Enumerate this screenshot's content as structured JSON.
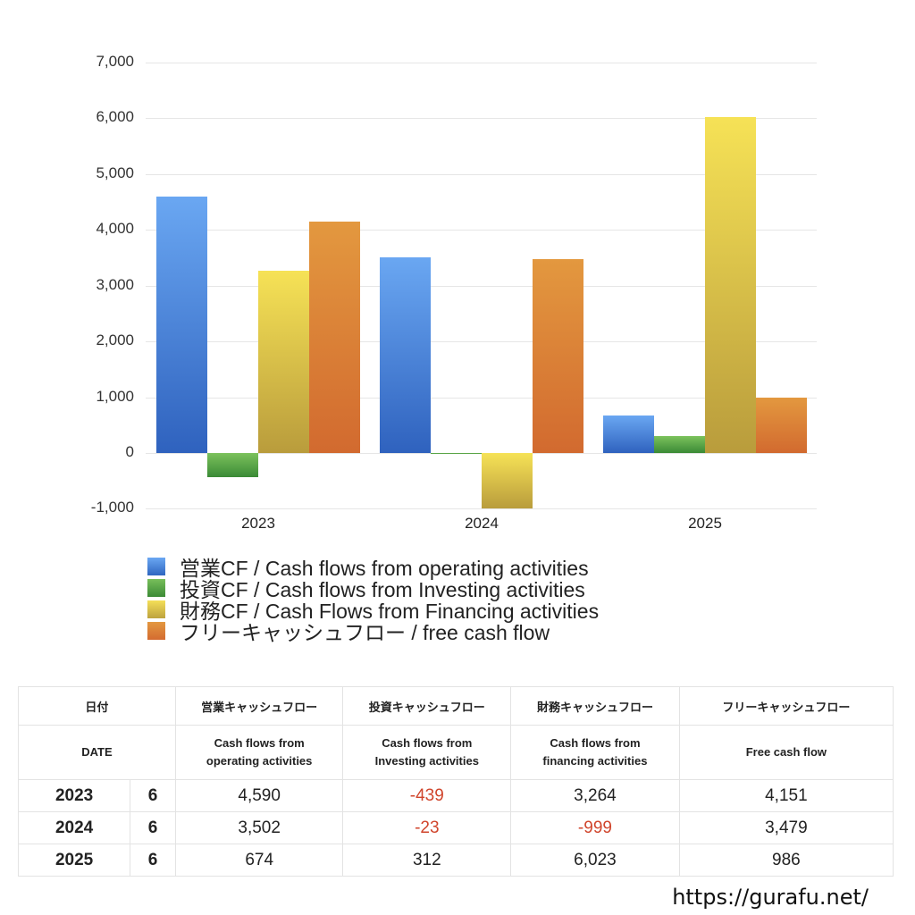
{
  "chart_data": {
    "type": "bar",
    "title": "",
    "xlabel": "",
    "ylabel": "",
    "categories": [
      "2023",
      "2024",
      "2025"
    ],
    "ylim": [
      -1000,
      7000
    ],
    "yticks": [
      "7,000",
      "6,000",
      "5,000",
      "4,000",
      "3,000",
      "2,000",
      "1,000",
      "0",
      "-1,000"
    ],
    "grid": true,
    "legend_position": "bottom",
    "series": [
      {
        "name": "営業CF / Cash flows from operating activities",
        "color": "#4a86dc",
        "values": [
          4590,
          3502,
          674
        ]
      },
      {
        "name": "投資CF / Cash flows from Investing activities",
        "color": "#4c9a3c",
        "values": [
          -439,
          -23,
          312
        ]
      },
      {
        "name": "財務CF / Cash Flows from Financing activities",
        "color": "#e3c84a",
        "values": [
          3264,
          -999,
          6023
        ]
      },
      {
        "name": "フリーキャッシュフロー / free cash flow",
        "color": "#dc7e35",
        "values": [
          4151,
          3479,
          986
        ]
      }
    ]
  },
  "legend": [
    {
      "label": "営業CF / Cash flows from operating activities"
    },
    {
      "label": "投資CF / Cash flows from Investing activities"
    },
    {
      "label": "財務CF / Cash Flows from Financing activities"
    },
    {
      "label": "フリーキャッシュフロー / free cash flow"
    }
  ],
  "table": {
    "header_jp": [
      "日付",
      "営業キャッシュフロー",
      "投資キャッシュフロー",
      "財務キャッシュフロー",
      "フリーキャッシュフロー"
    ],
    "header_en": [
      "DATE",
      "Cash flows from operating activities",
      "Cash flows from Investing activities",
      "Cash flows from financing activities",
      "Free cash flow"
    ],
    "rows": [
      {
        "year": "2023",
        "month": "6",
        "operating": "4,590",
        "investing": "-439",
        "financing": "3,264",
        "free": "4,151"
      },
      {
        "year": "2024",
        "month": "6",
        "operating": "3,502",
        "investing": "-23",
        "financing": "-999",
        "free": "3,479"
      },
      {
        "year": "2025",
        "month": "6",
        "operating": "674",
        "investing": "312",
        "financing": "6,023",
        "free": "986"
      }
    ]
  },
  "footer": {
    "url": "https://gurafu.net/"
  },
  "colors": {
    "negative": "#d0452c",
    "grid": "#e6e6e6"
  }
}
